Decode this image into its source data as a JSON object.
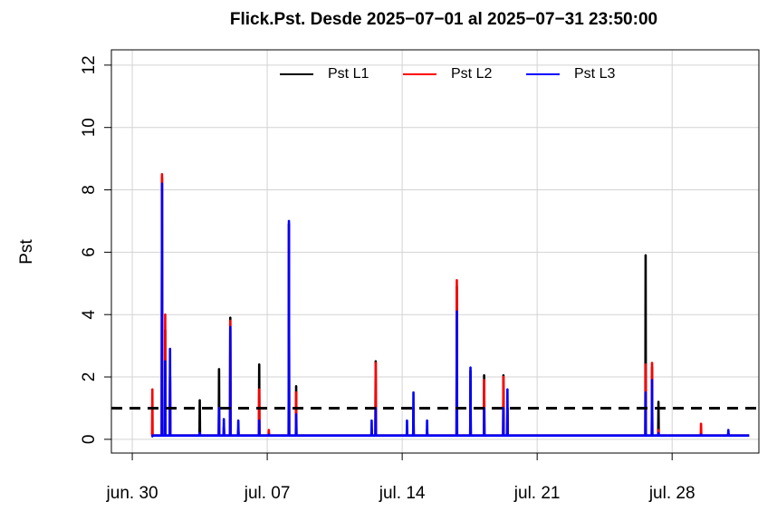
{
  "chart_data": {
    "type": "line",
    "title": "Flick.Pst. Desde  2025−07−01  al  2025−07−31 23:50:00",
    "y_label": "Pst",
    "x": [
      "2025-07-01 00:00",
      "2025-07-01 00:40",
      "2025-07-01 01:00",
      "2025-07-01 01:20",
      "2025-07-01 12:40",
      "2025-07-01 13:00",
      "2025-07-01 13:20",
      "2025-07-01 16:40",
      "2025-07-01 17:00",
      "2025-07-01 17:20",
      "2025-07-01 22:40",
      "2025-07-01 23:00",
      "2025-07-01 23:20",
      "2025-07-03 11:40",
      "2025-07-03 12:00",
      "2025-07-03 12:20",
      "2025-07-04 11:40",
      "2025-07-04 12:00",
      "2025-07-04 12:20",
      "2025-07-04 17:40",
      "2025-07-04 18:00",
      "2025-07-04 18:20",
      "2025-07-05 01:40",
      "2025-07-05 02:00",
      "2025-07-05 02:20",
      "2025-07-05 11:40",
      "2025-07-05 12:00",
      "2025-07-05 12:20",
      "2025-07-06 13:40",
      "2025-07-06 14:00",
      "2025-07-06 14:20",
      "2025-07-07 01:40",
      "2025-07-07 02:00",
      "2025-07-07 02:20",
      "2025-07-08 02:40",
      "2025-07-08 03:00",
      "2025-07-08 03:20",
      "2025-07-08 11:40",
      "2025-07-08 12:00",
      "2025-07-08 12:20",
      "2025-07-12 09:40",
      "2025-07-12 10:00",
      "2025-07-12 10:20",
      "2025-07-12 14:40",
      "2025-07-12 15:00",
      "2025-07-12 15:20",
      "2025-07-14 05:40",
      "2025-07-14 06:00",
      "2025-07-14 06:20",
      "2025-07-14 13:40",
      "2025-07-14 14:00",
      "2025-07-14 14:20",
      "2025-07-15 06:40",
      "2025-07-15 07:00",
      "2025-07-15 07:20",
      "2025-07-16 19:40",
      "2025-07-16 20:00",
      "2025-07-16 20:20",
      "2025-07-17 12:40",
      "2025-07-17 13:00",
      "2025-07-17 13:20",
      "2025-07-18 05:40",
      "2025-07-18 06:00",
      "2025-07-18 06:20",
      "2025-07-19 05:40",
      "2025-07-19 06:00",
      "2025-07-19 06:20",
      "2025-07-19 10:40",
      "2025-07-19 11:00",
      "2025-07-19 11:20",
      "2025-07-26 14:40",
      "2025-07-26 15:00",
      "2025-07-26 15:20",
      "2025-07-26 22:40",
      "2025-07-26 23:00",
      "2025-07-26 23:20",
      "2025-07-27 06:40",
      "2025-07-27 07:00",
      "2025-07-27 07:20",
      "2025-07-29 11:40",
      "2025-07-29 12:00",
      "2025-07-29 12:20",
      "2025-07-30 21:40",
      "2025-07-30 22:00",
      "2025-07-30 22:20",
      "2025-07-31 23:50"
    ],
    "series": [
      {
        "name": "Pst L1",
        "color": "#000000",
        "values": [
          0.12,
          0.12,
          0.1,
          0.12,
          0.12,
          8.4,
          0.12,
          0.12,
          3.5,
          0.12,
          0.12,
          2.0,
          0.12,
          0.12,
          1.25,
          0.12,
          0.12,
          2.25,
          0.12,
          0.12,
          0.4,
          0.12,
          0.12,
          3.9,
          0.12,
          0.12,
          0.3,
          0.12,
          0.12,
          2.4,
          0.12,
          0.12,
          0.2,
          0.12,
          0.12,
          6.9,
          0.12,
          0.12,
          1.7,
          0.12,
          0.12,
          0.3,
          0.12,
          0.12,
          2.5,
          0.12,
          0.12,
          0.3,
          0.12,
          0.12,
          1.0,
          0.12,
          0.12,
          0.3,
          0.12,
          0.12,
          4.9,
          0.12,
          0.12,
          2.2,
          0.12,
          0.12,
          2.05,
          0.12,
          0.12,
          2.05,
          0.12,
          0.12,
          1.0,
          0.12,
          0.12,
          5.9,
          0.12,
          0.12,
          2.3,
          0.12,
          0.12,
          1.2,
          0.12,
          0.12,
          0.2,
          0.12,
          0.12,
          0.2,
          0.12,
          0.12
        ]
      },
      {
        "name": "Pst L2",
        "color": "#ff0000",
        "values": [
          0.12,
          0.12,
          1.6,
          0.12,
          0.12,
          8.5,
          0.12,
          0.12,
          4.0,
          0.12,
          0.12,
          2.0,
          0.12,
          0.12,
          0.2,
          0.12,
          0.12,
          1.0,
          0.12,
          0.12,
          0.4,
          0.12,
          0.12,
          3.8,
          0.12,
          0.12,
          0.3,
          0.12,
          0.12,
          1.6,
          0.12,
          0.12,
          0.3,
          0.12,
          0.12,
          6.9,
          0.12,
          0.12,
          1.5,
          0.12,
          0.12,
          0.3,
          0.12,
          0.12,
          2.45,
          0.12,
          0.12,
          0.3,
          0.12,
          0.12,
          1.0,
          0.12,
          0.12,
          0.3,
          0.12,
          0.12,
          5.1,
          0.12,
          0.12,
          1.2,
          0.12,
          0.12,
          1.9,
          0.12,
          0.12,
          2.0,
          0.12,
          0.12,
          1.0,
          0.12,
          0.12,
          2.4,
          0.12,
          0.12,
          2.45,
          0.12,
          0.12,
          0.3,
          0.12,
          0.12,
          0.5,
          0.12,
          0.12,
          0.2,
          0.12,
          0.12
        ]
      },
      {
        "name": "Pst L3",
        "color": "#0000ff",
        "values": [
          0.12,
          0.12,
          0.1,
          0.12,
          0.12,
          8.2,
          0.12,
          0.12,
          2.5,
          0.12,
          0.12,
          2.9,
          0.12,
          0.12,
          0.2,
          0.12,
          0.12,
          1.0,
          0.12,
          0.12,
          0.65,
          0.12,
          0.12,
          3.6,
          0.12,
          0.12,
          0.6,
          0.12,
          0.12,
          0.6,
          0.12,
          0.12,
          0.15,
          0.12,
          0.12,
          7.0,
          0.12,
          0.12,
          0.8,
          0.12,
          0.12,
          0.6,
          0.12,
          0.12,
          1.0,
          0.12,
          0.12,
          0.6,
          0.12,
          0.12,
          1.5,
          0.12,
          0.12,
          0.6,
          0.12,
          0.12,
          4.1,
          0.12,
          0.12,
          2.3,
          0.12,
          0.12,
          1.0,
          0.12,
          0.12,
          1.0,
          0.12,
          0.12,
          1.6,
          0.12,
          0.12,
          1.5,
          0.12,
          0.12,
          1.9,
          0.12,
          0.12,
          0.2,
          0.12,
          0.12,
          0.15,
          0.12,
          0.12,
          0.3,
          0.12,
          0.12
        ]
      }
    ],
    "reference_line": 1,
    "xlim": [
      "2025-06-28 22:00",
      "2025-08-01 12:00"
    ],
    "xticks": [
      {
        "value": "2025-06-30 00:00",
        "label": "jun. 30"
      },
      {
        "value": "2025-07-07 00:00",
        "label": "jul. 07"
      },
      {
        "value": "2025-07-14 00:00",
        "label": "jul. 14"
      },
      {
        "value": "2025-07-21 00:00",
        "label": "jul. 21"
      },
      {
        "value": "2025-07-28 00:00",
        "label": "jul. 28"
      }
    ],
    "ylim": [
      -0.44,
      12.49
    ],
    "yticks": [
      0,
      2,
      4,
      6,
      8,
      10,
      12
    ],
    "grid": true,
    "legend_position": "top"
  }
}
